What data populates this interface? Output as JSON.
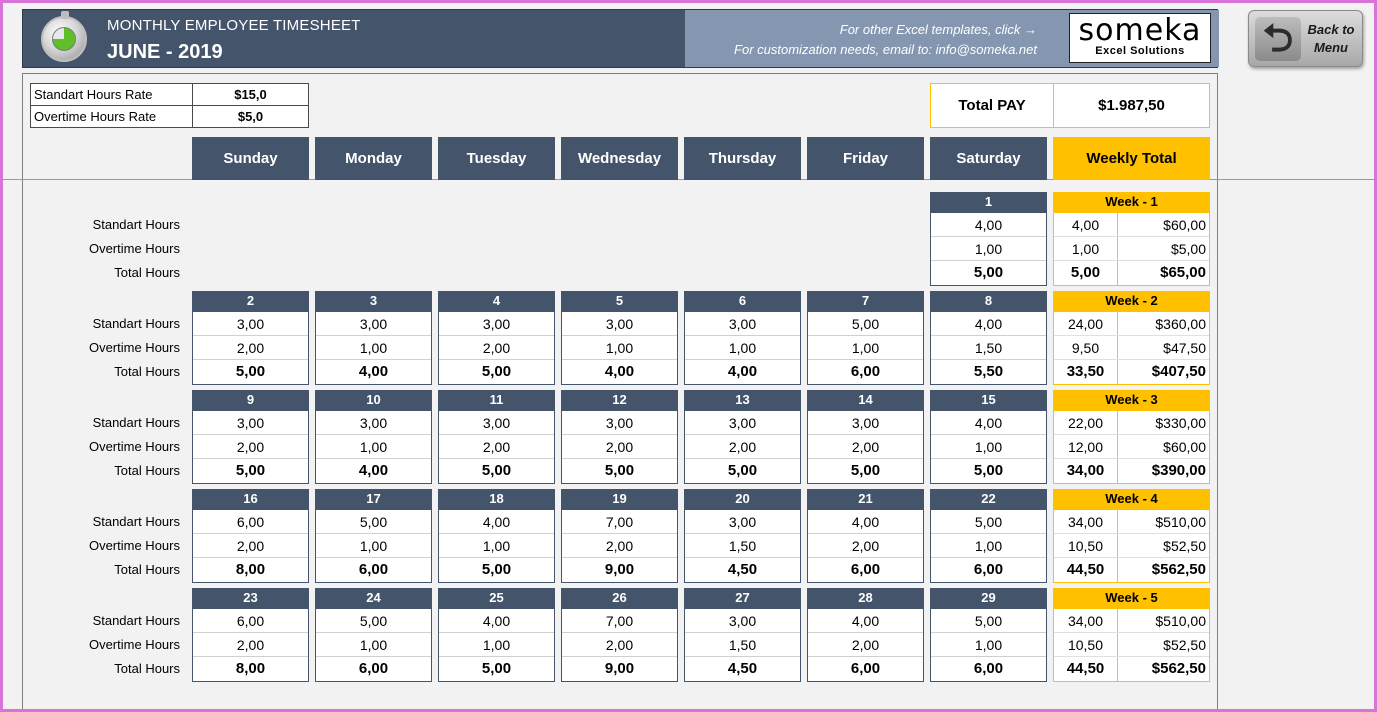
{
  "header": {
    "title": "MONTHLY EMPLOYEE TIMESHEET",
    "subtitle": "JUNE - 2019",
    "note1": "For other Excel templates, click →",
    "note2": "For customization needs, email to: info@someka.net",
    "brand_name": "someka",
    "brand_sub": "Excel Solutions"
  },
  "back_button": {
    "arrow": "⮌",
    "label_line1": "Back to",
    "label_line2": "Menu",
    "icon": "back-arrow-icon"
  },
  "rates": {
    "standard_label": "Standart Hours Rate",
    "standard_value": "$15,0",
    "overtime_label": "Overtime Hours Rate",
    "overtime_value": "$5,0"
  },
  "total_pay": {
    "label": "Total PAY",
    "value": "$1.987,50"
  },
  "days": [
    "Sunday",
    "Monday",
    "Tuesday",
    "Wednesday",
    "Thursday",
    "Friday",
    "Saturday"
  ],
  "weekly_total_label": "Weekly Total",
  "row_labels": {
    "standard": "Standart Hours",
    "overtime": "Overtime Hours",
    "total": "Total Hours"
  },
  "weeks": [
    {
      "label": "Week - 1",
      "days": [
        null,
        null,
        null,
        null,
        null,
        null,
        {
          "day": "1",
          "std": "4,00",
          "ot": "1,00",
          "total": "5,00"
        }
      ],
      "std_hours": "4,00",
      "std_pay": "$60,00",
      "ot_hours": "1,00",
      "ot_pay": "$5,00",
      "total_hours": "5,00",
      "total_pay": "$65,00"
    },
    {
      "label": "Week - 2",
      "days": [
        {
          "day": "2",
          "std": "3,00",
          "ot": "2,00",
          "total": "5,00"
        },
        {
          "day": "3",
          "std": "3,00",
          "ot": "1,00",
          "total": "4,00"
        },
        {
          "day": "4",
          "std": "3,00",
          "ot": "2,00",
          "total": "5,00"
        },
        {
          "day": "5",
          "std": "3,00",
          "ot": "1,00",
          "total": "4,00"
        },
        {
          "day": "6",
          "std": "3,00",
          "ot": "1,00",
          "total": "4,00"
        },
        {
          "day": "7",
          "std": "5,00",
          "ot": "1,00",
          "total": "6,00"
        },
        {
          "day": "8",
          "std": "4,00",
          "ot": "1,50",
          "total": "5,50"
        }
      ],
      "std_hours": "24,00",
      "std_pay": "$360,00",
      "ot_hours": "9,50",
      "ot_pay": "$47,50",
      "total_hours": "33,50",
      "total_pay": "$407,50"
    },
    {
      "label": "Week - 3",
      "days": [
        {
          "day": "9",
          "std": "3,00",
          "ot": "2,00",
          "total": "5,00"
        },
        {
          "day": "10",
          "std": "3,00",
          "ot": "1,00",
          "total": "4,00"
        },
        {
          "day": "11",
          "std": "3,00",
          "ot": "2,00",
          "total": "5,00"
        },
        {
          "day": "12",
          "std": "3,00",
          "ot": "2,00",
          "total": "5,00"
        },
        {
          "day": "13",
          "std": "3,00",
          "ot": "2,00",
          "total": "5,00"
        },
        {
          "day": "14",
          "std": "3,00",
          "ot": "2,00",
          "total": "5,00"
        },
        {
          "day": "15",
          "std": "4,00",
          "ot": "1,00",
          "total": "5,00"
        }
      ],
      "std_hours": "22,00",
      "std_pay": "$330,00",
      "ot_hours": "12,00",
      "ot_pay": "$60,00",
      "total_hours": "34,00",
      "total_pay": "$390,00"
    },
    {
      "label": "Week - 4",
      "days": [
        {
          "day": "16",
          "std": "6,00",
          "ot": "2,00",
          "total": "8,00"
        },
        {
          "day": "17",
          "std": "5,00",
          "ot": "1,00",
          "total": "6,00"
        },
        {
          "day": "18",
          "std": "4,00",
          "ot": "1,00",
          "total": "5,00"
        },
        {
          "day": "19",
          "std": "7,00",
          "ot": "2,00",
          "total": "9,00"
        },
        {
          "day": "20",
          "std": "3,00",
          "ot": "1,50",
          "total": "4,50"
        },
        {
          "day": "21",
          "std": "4,00",
          "ot": "2,00",
          "total": "6,00"
        },
        {
          "day": "22",
          "std": "5,00",
          "ot": "1,00",
          "total": "6,00"
        }
      ],
      "std_hours": "34,00",
      "std_pay": "$510,00",
      "ot_hours": "10,50",
      "ot_pay": "$52,50",
      "total_hours": "44,50",
      "total_pay": "$562,50"
    },
    {
      "label": "Week - 5",
      "days": [
        {
          "day": "23",
          "std": "6,00",
          "ot": "2,00",
          "total": "8,00"
        },
        {
          "day": "24",
          "std": "5,00",
          "ot": "1,00",
          "total": "6,00"
        },
        {
          "day": "25",
          "std": "4,00",
          "ot": "1,00",
          "total": "5,00"
        },
        {
          "day": "26",
          "std": "7,00",
          "ot": "2,00",
          "total": "9,00"
        },
        {
          "day": "27",
          "std": "3,00",
          "ot": "1,50",
          "total": "4,50"
        },
        {
          "day": "28",
          "std": "4,00",
          "ot": "2,00",
          "total": "6,00"
        },
        {
          "day": "29",
          "std": "5,00",
          "ot": "1,00",
          "total": "6,00"
        }
      ],
      "std_hours": "34,00",
      "std_pay": "$510,00",
      "ot_hours": "10,50",
      "ot_pay": "$52,50",
      "total_hours": "44,50",
      "total_pay": "$562,50"
    }
  ],
  "colors": {
    "header": "#44546a",
    "accent": "#ffc000",
    "panel": "#8496b0"
  }
}
